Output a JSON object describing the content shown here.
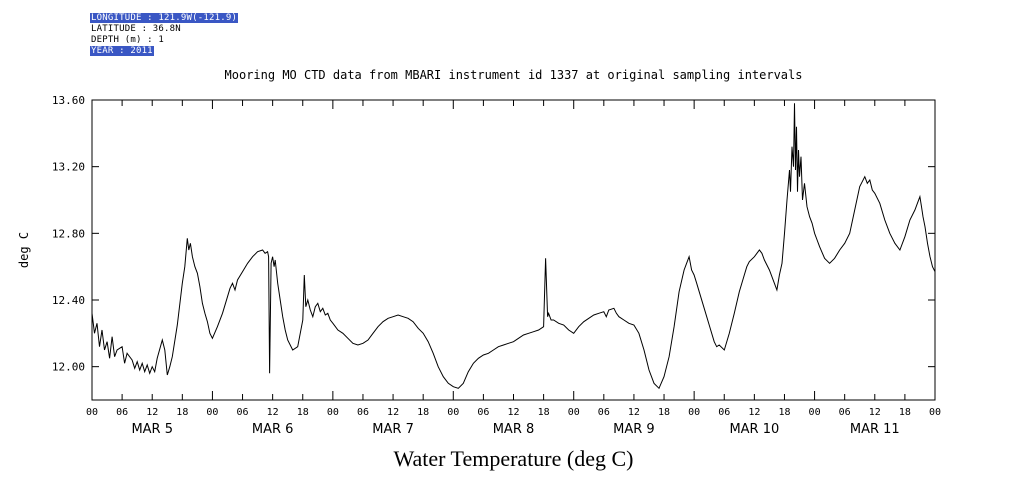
{
  "header": {
    "lines": [
      {
        "text": "LONGITUDE : 121.9W(-121.9)",
        "highlighted": true
      },
      {
        "text": "LATITUDE : 36.8N",
        "highlighted": false
      },
      {
        "text": "DEPTH (m) : 1",
        "highlighted": false
      },
      {
        "text": "YEAR : 2011",
        "highlighted": true
      }
    ]
  },
  "colors": {
    "line": "#000000",
    "background": "#ffffff",
    "highlight_bg": "#3a57c4",
    "highlight_text": "#ffffff"
  },
  "chart_data": {
    "type": "line",
    "title": "Mooring MO CTD data from MBARI instrument id 1337 at original sampling intervals",
    "caption": "Water Temperature (deg C)",
    "ylabel": "deg C",
    "xlabel": "",
    "ylim": [
      11.8,
      13.6
    ],
    "ytick_values": [
      12.0,
      12.4,
      12.8,
      13.2,
      13.6
    ],
    "ytick_labels": [
      "12.00",
      "12.40",
      "12.80",
      "13.20",
      "13.60"
    ],
    "x_range": [
      0,
      168
    ],
    "x_tick_interval_hours": 6,
    "x_tick_labels": [
      "00",
      "06",
      "12",
      "18",
      "00",
      "06",
      "12",
      "18",
      "00",
      "06",
      "12",
      "18",
      "00",
      "06",
      "12",
      "18",
      "00",
      "06",
      "12",
      "18",
      "00",
      "06",
      "12",
      "18",
      "00",
      "06",
      "12",
      "18",
      "00"
    ],
    "day_labels": [
      "MAR 5",
      "MAR 6",
      "MAR 7",
      "MAR 8",
      "MAR 9",
      "MAR 10",
      "MAR 11"
    ],
    "grid": false,
    "legend": "none",
    "series": [
      {
        "name": "Water Temperature (deg C)",
        "points": [
          [
            0,
            12.32
          ],
          [
            0.5,
            12.2
          ],
          [
            1,
            12.26
          ],
          [
            1.5,
            12.12
          ],
          [
            2,
            12.22
          ],
          [
            2.5,
            12.1
          ],
          [
            3,
            12.15
          ],
          [
            3.5,
            12.05
          ],
          [
            4,
            12.18
          ],
          [
            4.5,
            12.06
          ],
          [
            5,
            12.1
          ],
          [
            6,
            12.12
          ],
          [
            6.5,
            12.02
          ],
          [
            7,
            12.08
          ],
          [
            8,
            12.04
          ],
          [
            8.5,
            11.99
          ],
          [
            9,
            12.03
          ],
          [
            9.5,
            11.98
          ],
          [
            10,
            12.02
          ],
          [
            10.5,
            11.97
          ],
          [
            11,
            12.01
          ],
          [
            11.5,
            11.96
          ],
          [
            12,
            12.0
          ],
          [
            12.5,
            11.97
          ],
          [
            13,
            12.05
          ],
          [
            14,
            12.16
          ],
          [
            14.5,
            12.1
          ],
          [
            15,
            11.95
          ],
          [
            15.5,
            12.0
          ],
          [
            16,
            12.06
          ],
          [
            17,
            12.25
          ],
          [
            18,
            12.5
          ],
          [
            18.5,
            12.6
          ],
          [
            19,
            12.77
          ],
          [
            19.3,
            12.7
          ],
          [
            19.6,
            12.74
          ],
          [
            20,
            12.66
          ],
          [
            20.5,
            12.6
          ],
          [
            21,
            12.56
          ],
          [
            21.5,
            12.48
          ],
          [
            22,
            12.38
          ],
          [
            22.5,
            12.32
          ],
          [
            23,
            12.27
          ],
          [
            23.5,
            12.2
          ],
          [
            24,
            12.17
          ],
          [
            25,
            12.24
          ],
          [
            26,
            12.32
          ],
          [
            27,
            12.42
          ],
          [
            27.5,
            12.47
          ],
          [
            28,
            12.5
          ],
          [
            28.5,
            12.46
          ],
          [
            29,
            12.52
          ],
          [
            30,
            12.57
          ],
          [
            31,
            12.62
          ],
          [
            32,
            12.66
          ],
          [
            33,
            12.69
          ],
          [
            34,
            12.7
          ],
          [
            34.5,
            12.68
          ],
          [
            35,
            12.69
          ],
          [
            35.2,
            12.66
          ],
          [
            35.4,
            11.96
          ],
          [
            35.7,
            12.62
          ],
          [
            36,
            12.66
          ],
          [
            36.3,
            12.6
          ],
          [
            36.5,
            12.64
          ],
          [
            37,
            12.5
          ],
          [
            37.5,
            12.4
          ],
          [
            38,
            12.3
          ],
          [
            38.5,
            12.22
          ],
          [
            39,
            12.16
          ],
          [
            40,
            12.1
          ],
          [
            41,
            12.12
          ],
          [
            42,
            12.28
          ],
          [
            42.3,
            12.55
          ],
          [
            42.6,
            12.36
          ],
          [
            43,
            12.4
          ],
          [
            43.5,
            12.34
          ],
          [
            44,
            12.3
          ],
          [
            44.5,
            12.36
          ],
          [
            45,
            12.38
          ],
          [
            45.5,
            12.33
          ],
          [
            46,
            12.35
          ],
          [
            46.5,
            12.31
          ],
          [
            47,
            12.32
          ],
          [
            47.5,
            12.28
          ],
          [
            48,
            12.26
          ],
          [
            49,
            12.22
          ],
          [
            50,
            12.2
          ],
          [
            51,
            12.17
          ],
          [
            52,
            12.14
          ],
          [
            53,
            12.13
          ],
          [
            54,
            12.14
          ],
          [
            55,
            12.16
          ],
          [
            56,
            12.2
          ],
          [
            57,
            12.24
          ],
          [
            58,
            12.27
          ],
          [
            59,
            12.29
          ],
          [
            60,
            12.3
          ],
          [
            61,
            12.31
          ],
          [
            62,
            12.3
          ],
          [
            63,
            12.29
          ],
          [
            64,
            12.27
          ],
          [
            65,
            12.23
          ],
          [
            66,
            12.2
          ],
          [
            67,
            12.15
          ],
          [
            68,
            12.08
          ],
          [
            69,
            12.0
          ],
          [
            70,
            11.94
          ],
          [
            71,
            11.9
          ],
          [
            72,
            11.88
          ],
          [
            73,
            11.87
          ],
          [
            74,
            11.9
          ],
          [
            75,
            11.97
          ],
          [
            76,
            12.02
          ],
          [
            77,
            12.05
          ],
          [
            78,
            12.07
          ],
          [
            79,
            12.08
          ],
          [
            80,
            12.1
          ],
          [
            81,
            12.12
          ],
          [
            82,
            12.13
          ],
          [
            83,
            12.14
          ],
          [
            84,
            12.15
          ],
          [
            85,
            12.17
          ],
          [
            86,
            12.19
          ],
          [
            87,
            12.2
          ],
          [
            88,
            12.21
          ],
          [
            89,
            12.22
          ],
          [
            90,
            12.24
          ],
          [
            90.4,
            12.65
          ],
          [
            90.8,
            12.3
          ],
          [
            91,
            12.32
          ],
          [
            91.5,
            12.28
          ],
          [
            92,
            12.28
          ],
          [
            93,
            12.26
          ],
          [
            94,
            12.25
          ],
          [
            95,
            12.22
          ],
          [
            96,
            12.2
          ],
          [
            97,
            12.24
          ],
          [
            98,
            12.27
          ],
          [
            99,
            12.29
          ],
          [
            100,
            12.31
          ],
          [
            101,
            12.32
          ],
          [
            102,
            12.33
          ],
          [
            102.5,
            12.3
          ],
          [
            103,
            12.34
          ],
          [
            104,
            12.35
          ],
          [
            104.5,
            12.32
          ],
          [
            105,
            12.3
          ],
          [
            106,
            12.28
          ],
          [
            107,
            12.26
          ],
          [
            108,
            12.25
          ],
          [
            109,
            12.2
          ],
          [
            110,
            12.1
          ],
          [
            111,
            11.98
          ],
          [
            112,
            11.9
          ],
          [
            113,
            11.87
          ],
          [
            114,
            11.94
          ],
          [
            115,
            12.06
          ],
          [
            116,
            12.24
          ],
          [
            117,
            12.45
          ],
          [
            118,
            12.58
          ],
          [
            118.5,
            12.62
          ],
          [
            119,
            12.66
          ],
          [
            119.5,
            12.58
          ],
          [
            120,
            12.55
          ],
          [
            120.5,
            12.5
          ],
          [
            121,
            12.45
          ],
          [
            122,
            12.35
          ],
          [
            123,
            12.25
          ],
          [
            124,
            12.15
          ],
          [
            124.5,
            12.12
          ],
          [
            125,
            12.13
          ],
          [
            126,
            12.1
          ],
          [
            127,
            12.2
          ],
          [
            128,
            12.32
          ],
          [
            129,
            12.45
          ],
          [
            130,
            12.55
          ],
          [
            130.5,
            12.6
          ],
          [
            131,
            12.63
          ],
          [
            132,
            12.66
          ],
          [
            132.5,
            12.68
          ],
          [
            133,
            12.7
          ],
          [
            133.5,
            12.68
          ],
          [
            134,
            12.64
          ],
          [
            135,
            12.58
          ],
          [
            136,
            12.5
          ],
          [
            136.5,
            12.46
          ],
          [
            137,
            12.55
          ],
          [
            137.5,
            12.62
          ],
          [
            138,
            12.8
          ],
          [
            138.5,
            13.0
          ],
          [
            139,
            13.18
          ],
          [
            139.2,
            13.05
          ],
          [
            139.5,
            13.32
          ],
          [
            139.8,
            13.2
          ],
          [
            140,
            13.58
          ],
          [
            140.2,
            13.18
          ],
          [
            140.4,
            13.44
          ],
          [
            140.6,
            13.05
          ],
          [
            140.8,
            13.3
          ],
          [
            141,
            13.14
          ],
          [
            141.3,
            13.26
          ],
          [
            141.6,
            13.0
          ],
          [
            142,
            13.1
          ],
          [
            142.5,
            12.96
          ],
          [
            143,
            12.9
          ],
          [
            143.5,
            12.86
          ],
          [
            144,
            12.8
          ],
          [
            144.5,
            12.76
          ],
          [
            145,
            12.72
          ],
          [
            146,
            12.65
          ],
          [
            147,
            12.62
          ],
          [
            148,
            12.65
          ],
          [
            149,
            12.7
          ],
          [
            150,
            12.74
          ],
          [
            151,
            12.8
          ],
          [
            152,
            12.94
          ],
          [
            153,
            13.08
          ],
          [
            154,
            13.14
          ],
          [
            154.5,
            13.1
          ],
          [
            155,
            13.12
          ],
          [
            155.5,
            13.06
          ],
          [
            156,
            13.04
          ],
          [
            157,
            12.98
          ],
          [
            158,
            12.88
          ],
          [
            159,
            12.8
          ],
          [
            160,
            12.74
          ],
          [
            161,
            12.7
          ],
          [
            162,
            12.78
          ],
          [
            163,
            12.88
          ],
          [
            164,
            12.94
          ],
          [
            164.5,
            12.98
          ],
          [
            165,
            13.02
          ],
          [
            165.3,
            12.96
          ],
          [
            165.6,
            12.9
          ],
          [
            166,
            12.84
          ],
          [
            166.5,
            12.74
          ],
          [
            167,
            12.66
          ],
          [
            167.5,
            12.6
          ],
          [
            168,
            12.57
          ]
        ]
      }
    ]
  }
}
